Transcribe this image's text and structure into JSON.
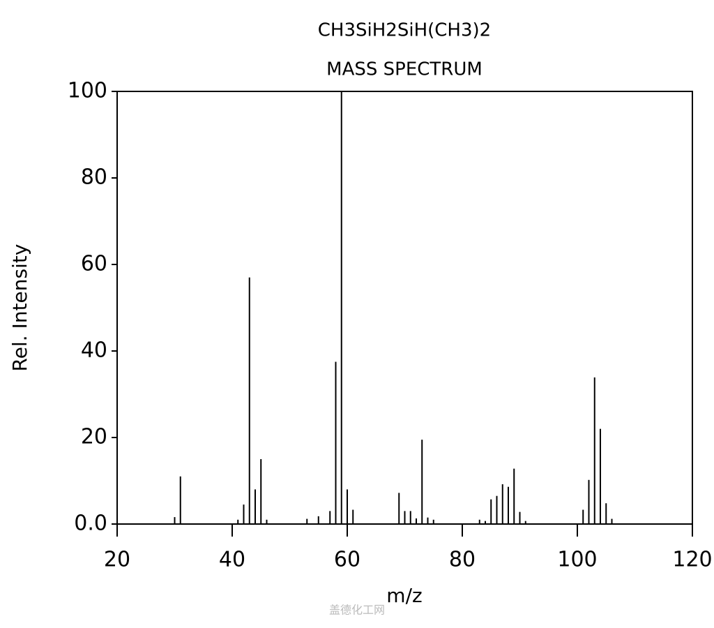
{
  "chart_data": {
    "type": "stem",
    "title": "CH3SiH2SiH(CH3)2",
    "subtitle": "MASS SPECTRUM",
    "x_label": "m/z",
    "y_label": "Rel. Intensity",
    "x": [
      30,
      31,
      41,
      42,
      43,
      44,
      45,
      46,
      53,
      55,
      57,
      58,
      59,
      60,
      61,
      69,
      70,
      71,
      72,
      73,
      74,
      75,
      83,
      84,
      85,
      86,
      87,
      88,
      89,
      90,
      91,
      101,
      102,
      103,
      104,
      105,
      106
    ],
    "values": [
      1.6,
      11,
      1,
      4.5,
      57,
      8,
      15,
      1,
      1.2,
      1.8,
      3,
      37.5,
      100,
      8,
      3.3,
      7.2,
      3,
      3,
      1.3,
      19.5,
      1.5,
      1,
      1,
      0.7,
      5.7,
      6.5,
      9.2,
      8.6,
      12.8,
      2.8,
      0.7,
      3.3,
      10.2,
      33.9,
      22,
      4.8,
      1.2
    ],
    "color": "#000000",
    "xlim": [
      20,
      120
    ],
    "ylim": [
      0,
      100
    ],
    "xticks": [
      20,
      40,
      60,
      80,
      100,
      120
    ],
    "yticks": [
      {
        "value": 0,
        "label": "0.0"
      },
      20,
      40,
      60,
      80,
      100
    ],
    "watermark": "盖德化工网"
  }
}
